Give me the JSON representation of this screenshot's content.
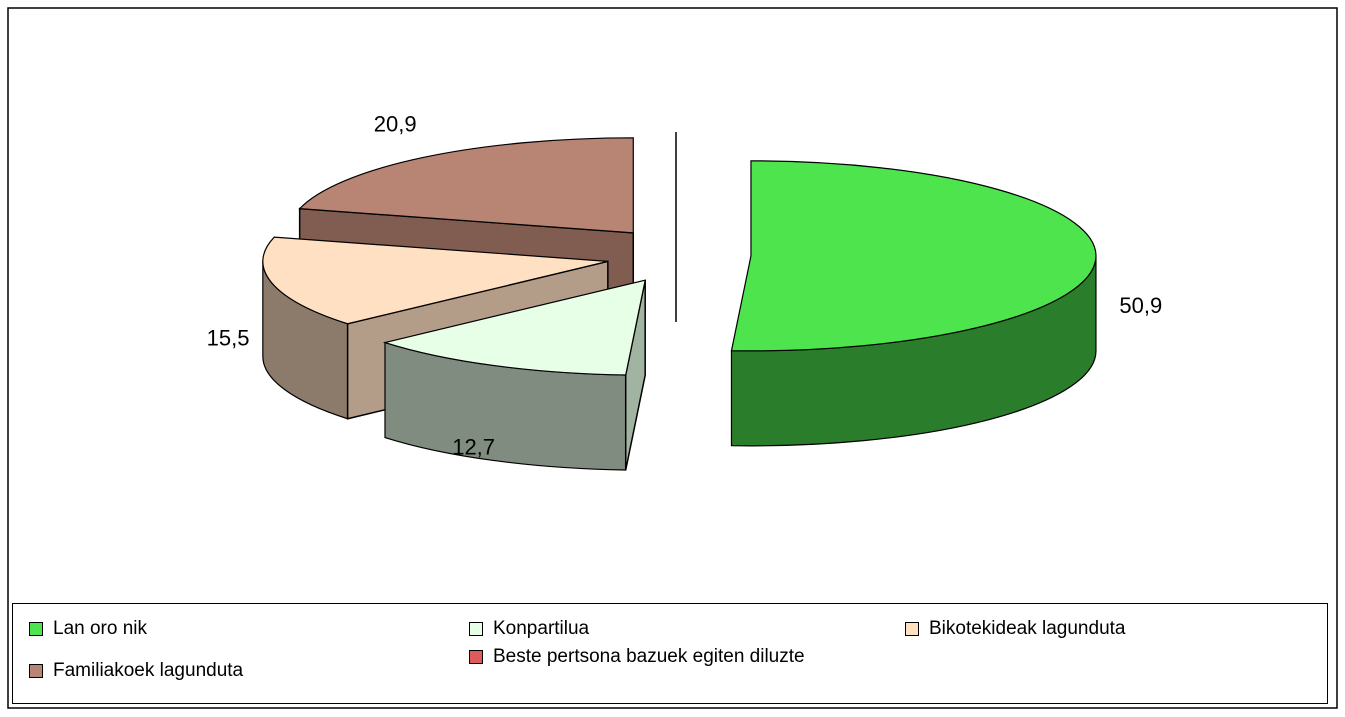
{
  "chart_data": {
    "type": "pie",
    "categories": [
      "Lan oro nik",
      "Konpartilua",
      "Bikotekideak lagunduta",
      "Familiakoek lagunduta",
      "Beste pertsona bazuek egiten diluzte"
    ],
    "values": [
      50.9,
      12.7,
      15.5,
      20.9,
      0
    ],
    "value_labels": [
      "50,9",
      "12,7",
      "15,5",
      "20,9",
      null
    ],
    "colors": [
      "#4de44d",
      "#e6ffe6",
      "#ffe0c2",
      "#b88474",
      "#e05a5a"
    ],
    "legend": "bottom"
  }
}
